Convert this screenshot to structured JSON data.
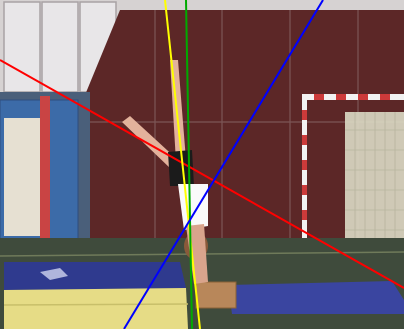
{
  "scene": {
    "description_ref": "gymnast-handstand-video-frame",
    "colors": {
      "wall": "#5a2626",
      "wall_light": "#d9d4d4",
      "floor": "#3d4a3b",
      "mat_blue": "#2e3a8c",
      "mat_yellow": "#e9e08a",
      "mat_cream": "#ece6c8",
      "side_mat_blue": "#3a6aa8",
      "goal_white": "#f2f2f2",
      "goal_red": "#cc3a3a",
      "net": "#d8d6c2",
      "skin": "#e6b5a0",
      "shirt": "#ffffff",
      "shorts": "#1a1a1a"
    }
  },
  "overlay": {
    "lines": [
      {
        "name": "red-line",
        "color": "#ff0000"
      },
      {
        "name": "yellow-line",
        "color": "#ffff00"
      },
      {
        "name": "green-line",
        "color": "#00aa00"
      },
      {
        "name": "blue-line",
        "color": "#0000ff"
      }
    ]
  }
}
